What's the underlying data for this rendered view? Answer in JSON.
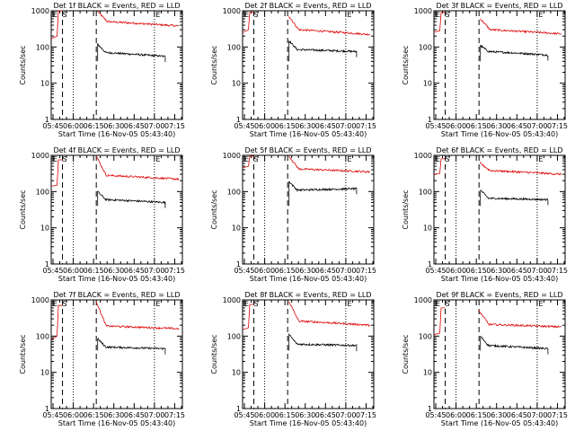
{
  "chart_data": [
    {
      "type": "line",
      "title": "Det 1f BLACK = Events, RED = LLD",
      "xlabel": "Start Time (16-Nov-05 05:43:40)",
      "ylabel": "Counts/sec",
      "ylim": [
        1,
        1000
      ],
      "yscale": "log",
      "ytick_labels": [
        "1",
        "10",
        "100",
        "1000"
      ],
      "x_tick_labels": [
        "05:45",
        "06:00",
        "06:15",
        "06:30",
        "06:45",
        "07:00",
        "07:15"
      ],
      "markers": [
        {
          "label": "E",
          "time": "05:45"
        },
        {
          "label": "S",
          "time": "05:52"
        },
        {
          "label": "E",
          "time": "07:01"
        }
      ],
      "series": [
        {
          "name": "RED = LLD",
          "color": "#dd0000",
          "start": "06:18",
          "end": "07:18",
          "start_value": 950,
          "plateau": 500,
          "end_value": 380,
          "pre_flare": [
            {
              "time": "05:43",
              "value": 170
            },
            {
              "time": "05:48",
              "value": 200
            },
            {
              "time": "05:49",
              "value": 1000
            },
            {
              "time": "05:52",
              "value": 1000
            }
          ]
        },
        {
          "name": "BLACK = Events",
          "color": "#000000",
          "start": "06:18",
          "end": "07:08",
          "start_value": 120,
          "plateau": 70,
          "end_value": 55
        }
      ]
    },
    {
      "type": "line",
      "title": "Det 2f BLACK = Events, RED = LLD",
      "xlabel": "Start Time (16-Nov-05 05:43:40)",
      "ylabel": "Counts/sec",
      "ylim": [
        1,
        1000
      ],
      "yscale": "log",
      "ytick_labels": [
        "1",
        "10",
        "100",
        "1000"
      ],
      "x_tick_labels": [
        "05:45",
        "06:00",
        "06:15",
        "06:30",
        "06:45",
        "07:00",
        "07:15"
      ],
      "markers": [
        {
          "label": "E",
          "time": "05:45"
        },
        {
          "label": "S",
          "time": "05:52"
        },
        {
          "label": "E",
          "time": "07:01"
        }
      ],
      "series": [
        {
          "name": "RED = LLD",
          "color": "#dd0000",
          "start": "06:18",
          "end": "07:18",
          "start_value": 700,
          "plateau": 300,
          "end_value": 220,
          "pre_flare": [
            {
              "time": "05:43",
              "value": 250
            },
            {
              "time": "05:48",
              "value": 300
            },
            {
              "time": "05:49",
              "value": 900
            },
            {
              "time": "05:52",
              "value": 900
            }
          ]
        },
        {
          "name": "BLACK = Events",
          "color": "#000000",
          "start": "06:18",
          "end": "07:08",
          "start_value": 150,
          "plateau": 85,
          "end_value": 75
        }
      ]
    },
    {
      "type": "line",
      "title": "Det 3f BLACK = Events, RED = LLD",
      "xlabel": "Start Time (16-Nov-05 05:43:40)",
      "ylabel": "Counts/sec",
      "ylim": [
        1,
        1000
      ],
      "yscale": "log",
      "ytick_labels": [
        "1",
        "10",
        "100",
        "1000"
      ],
      "x_tick_labels": [
        "05:45",
        "06:00",
        "06:15",
        "06:30",
        "06:45",
        "07:00",
        "07:15"
      ],
      "markers": [
        {
          "label": "E",
          "time": "05:45"
        },
        {
          "label": "S",
          "time": "05:52"
        },
        {
          "label": "E",
          "time": "07:01"
        }
      ],
      "series": [
        {
          "name": "RED = LLD",
          "color": "#dd0000",
          "start": "06:18",
          "end": "07:18",
          "start_value": 600,
          "plateau": 300,
          "end_value": 230,
          "pre_flare": [
            {
              "time": "05:43",
              "value": 260
            },
            {
              "time": "05:48",
              "value": 280
            },
            {
              "time": "05:49",
              "value": 900
            },
            {
              "time": "05:52",
              "value": 900
            }
          ]
        },
        {
          "name": "BLACK = Events",
          "color": "#000000",
          "start": "06:18",
          "end": "07:08",
          "start_value": 110,
          "plateau": 75,
          "end_value": 60
        }
      ]
    },
    {
      "type": "line",
      "title": "Det 4f BLACK = Events, RED = LLD",
      "xlabel": "Start Time (16-Nov-05 05:43:40)",
      "ylabel": "Counts/sec",
      "ylim": [
        1,
        1000
      ],
      "yscale": "log",
      "ytick_labels": [
        "1",
        "10",
        "100",
        "1000"
      ],
      "x_tick_labels": [
        "05:45",
        "06:00",
        "06:15",
        "06:30",
        "06:45",
        "07:00",
        "07:15"
      ],
      "markers": [
        {
          "label": "E",
          "time": "05:45"
        },
        {
          "label": "S",
          "time": "05:52"
        },
        {
          "label": "E",
          "time": "07:01"
        }
      ],
      "series": [
        {
          "name": "RED = LLD",
          "color": "#dd0000",
          "start": "06:17",
          "end": "07:18",
          "start_value": 950,
          "plateau": 280,
          "end_value": 220,
          "pre_flare": [
            {
              "time": "05:43",
              "value": 140
            },
            {
              "time": "05:48",
              "value": 150
            },
            {
              "time": "05:49",
              "value": 750
            },
            {
              "time": "05:52",
              "value": 750
            }
          ]
        },
        {
          "name": "BLACK = Events",
          "color": "#000000",
          "start": "06:18",
          "end": "07:08",
          "start_value": 100,
          "plateau": 60,
          "end_value": 50
        }
      ]
    },
    {
      "type": "line",
      "title": "Det 5f BLACK = Events, RED = LLD",
      "xlabel": "Start Time (16-Nov-05 05:43:40)",
      "ylabel": "Counts/sec",
      "ylim": [
        1,
        1000
      ],
      "yscale": "log",
      "ytick_labels": [
        "1",
        "10",
        "100",
        "1000"
      ],
      "x_tick_labels": [
        "05:45",
        "06:00",
        "06:15",
        "06:30",
        "06:45",
        "07:00",
        "07:15"
      ],
      "markers": [
        {
          "label": "E",
          "time": "05:45"
        },
        {
          "label": "S",
          "time": "05:52"
        },
        {
          "label": "E",
          "time": "07:01"
        }
      ],
      "series": [
        {
          "name": "RED = LLD",
          "color": "#dd0000",
          "start": "06:18",
          "end": "07:18",
          "start_value": 950,
          "plateau": 420,
          "end_value": 350,
          "pre_flare": [
            {
              "time": "05:43",
              "value": 450
            },
            {
              "time": "05:48",
              "value": 500
            },
            {
              "time": "05:49",
              "value": 950
            },
            {
              "time": "05:52",
              "value": 950
            }
          ]
        },
        {
          "name": "BLACK = Events",
          "color": "#000000",
          "start": "06:18",
          "end": "07:08",
          "start_value": 190,
          "plateau": 110,
          "end_value": 120
        }
      ]
    },
    {
      "type": "line",
      "title": "Det 6f BLACK = Events, RED = LLD",
      "xlabel": "Start Time (16-Nov-05 05:43:40)",
      "ylabel": "Counts/sec",
      "ylim": [
        1,
        1000
      ],
      "yscale": "log",
      "ytick_labels": [
        "1",
        "10",
        "100",
        "1000"
      ],
      "x_tick_labels": [
        "05:45",
        "06:00",
        "06:15",
        "06:30",
        "06:45",
        "07:00",
        "07:15"
      ],
      "markers": [
        {
          "label": "E",
          "time": "05:45"
        },
        {
          "label": "S",
          "time": "05:52"
        },
        {
          "label": "E",
          "time": "07:01"
        }
      ],
      "series": [
        {
          "name": "RED = LLD",
          "color": "#dd0000",
          "start": "06:18",
          "end": "07:18",
          "start_value": 600,
          "plateau": 380,
          "end_value": 300,
          "pre_flare": [
            {
              "time": "05:43",
              "value": 300
            },
            {
              "time": "05:48",
              "value": 320
            },
            {
              "time": "05:49",
              "value": 800
            },
            {
              "time": "05:52",
              "value": 800
            }
          ]
        },
        {
          "name": "BLACK = Events",
          "color": "#000000",
          "start": "06:18",
          "end": "07:08",
          "start_value": 110,
          "plateau": 65,
          "end_value": 60
        }
      ]
    },
    {
      "type": "line",
      "title": "Det 7f BLACK = Events, RED = LLD",
      "xlabel": "Start Time (16-Nov-05 05:43:40)",
      "ylabel": "Counts/sec",
      "ylim": [
        1,
        1000
      ],
      "yscale": "log",
      "ytick_labels": [
        "1",
        "10",
        "100",
        "1000"
      ],
      "x_tick_labels": [
        "05:45",
        "06:00",
        "06:15",
        "06:30",
        "06:45",
        "07:00",
        "07:15"
      ],
      "markers": [
        {
          "label": "E",
          "time": "05:45"
        },
        {
          "label": "S",
          "time": "05:52"
        },
        {
          "label": "E",
          "time": "07:01"
        }
      ],
      "series": [
        {
          "name": "RED = LLD",
          "color": "#dd0000",
          "start": "06:17",
          "end": "07:18",
          "start_value": 900,
          "plateau": 190,
          "end_value": 160,
          "pre_flare": [
            {
              "time": "05:43",
              "value": 80
            },
            {
              "time": "05:48",
              "value": 100
            },
            {
              "time": "05:49",
              "value": 700
            },
            {
              "time": "05:52",
              "value": 700
            }
          ]
        },
        {
          "name": "BLACK = Events",
          "color": "#000000",
          "start": "06:18",
          "end": "07:08",
          "start_value": 85,
          "plateau": 50,
          "end_value": 45
        }
      ]
    },
    {
      "type": "line",
      "title": "Det 8f BLACK = Events, RED = LLD",
      "xlabel": "Start Time (16-Nov-05 05:43:40)",
      "ylabel": "Counts/sec",
      "ylim": [
        1,
        1000
      ],
      "yscale": "log",
      "ytick_labels": [
        "1",
        "10",
        "100",
        "1000"
      ],
      "x_tick_labels": [
        "05:45",
        "06:00",
        "06:15",
        "06:30",
        "06:45",
        "07:00",
        "07:15"
      ],
      "markers": [
        {
          "label": "E",
          "time": "05:45"
        },
        {
          "label": "S",
          "time": "05:52"
        },
        {
          "label": "E",
          "time": "07:01"
        }
      ],
      "series": [
        {
          "name": "RED = LLD",
          "color": "#dd0000",
          "start": "06:18",
          "end": "07:18",
          "start_value": 900,
          "plateau": 260,
          "end_value": 200,
          "pre_flare": [
            {
              "time": "05:43",
              "value": 150
            },
            {
              "time": "05:48",
              "value": 170
            },
            {
              "time": "05:49",
              "value": 750
            },
            {
              "time": "05:52",
              "value": 750
            }
          ]
        },
        {
          "name": "BLACK = Events",
          "color": "#000000",
          "start": "06:18",
          "end": "07:08",
          "start_value": 110,
          "plateau": 60,
          "end_value": 55
        }
      ]
    },
    {
      "type": "line",
      "title": "Det 9f BLACK = Events, RED = LLD",
      "xlabel": "Start Time (16-Nov-05 05:43:40)",
      "ylabel": "Counts/sec",
      "ylim": [
        1,
        1000
      ],
      "yscale": "log",
      "ytick_labels": [
        "1",
        "10",
        "100",
        "1000"
      ],
      "x_tick_labels": [
        "05:45",
        "06:00",
        "06:15",
        "06:30",
        "06:45",
        "07:00",
        "07:15"
      ],
      "markers": [
        {
          "label": "E",
          "time": "05:45"
        },
        {
          "label": "S",
          "time": "05:52"
        },
        {
          "label": "E",
          "time": "07:01"
        }
      ],
      "series": [
        {
          "name": "RED = LLD",
          "color": "#dd0000",
          "start": "06:17",
          "end": "07:18",
          "start_value": 500,
          "plateau": 210,
          "end_value": 180,
          "pre_flare": [
            {
              "time": "05:43",
              "value": 110
            },
            {
              "time": "05:48",
              "value": 120
            },
            {
              "time": "05:49",
              "value": 600
            },
            {
              "time": "05:52",
              "value": 600
            }
          ]
        },
        {
          "name": "BLACK = Events",
          "color": "#000000",
          "start": "06:18",
          "end": "07:08",
          "start_value": 100,
          "plateau": 55,
          "end_value": 45
        }
      ]
    }
  ]
}
